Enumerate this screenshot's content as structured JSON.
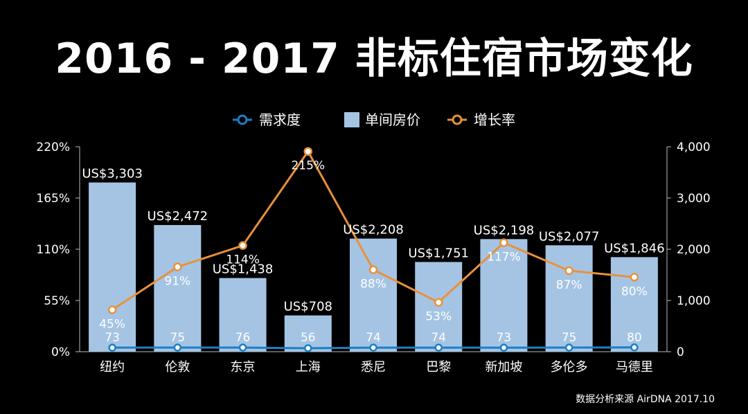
{
  "chart_data": {
    "type": "bar",
    "title": "2016 - 2017 非标住宿市场变化",
    "categories": [
      "纽约",
      "伦敦",
      "东京",
      "上海",
      "悉尼",
      "巴黎",
      "新加坡",
      "多伦多",
      "马德里"
    ],
    "legend": {
      "placement": "top-center",
      "items": [
        {
          "name": "需求度",
          "kind": "line-marker",
          "color": "#1a7fc4"
        },
        {
          "name": "单间房价",
          "kind": "bar",
          "color": "#a5c4e4"
        },
        {
          "name": "增长率",
          "kind": "line-marker",
          "color": "#e8913a"
        }
      ]
    },
    "left_axis": {
      "ylim": [
        0,
        220
      ],
      "ticks": [
        "0%",
        "55%",
        "110%",
        "165%",
        "220%"
      ],
      "tick_values": [
        0,
        55,
        110,
        165,
        220
      ]
    },
    "right_axis": {
      "ylim": [
        0,
        4000
      ],
      "ticks": [
        "0",
        "1,000",
        "2,000",
        "3,000",
        "4,000"
      ],
      "tick_values": [
        0,
        1000,
        2000,
        3000,
        4000
      ]
    },
    "grid": false,
    "series": [
      {
        "name": "单间房价",
        "type": "bar",
        "axis": "right",
        "color": "#a5c4e4",
        "values": [
          3303,
          2472,
          1438,
          708,
          2208,
          1751,
          2198,
          2077,
          1846
        ],
        "labels": [
          "US$3,303",
          "US$2,472",
          "US$1,438",
          "US$708",
          "US$2,208",
          "US$1,751",
          "US$2,198",
          "US$2,077",
          "US$1,846"
        ]
      },
      {
        "name": "增长率",
        "type": "line",
        "axis": "left",
        "color": "#e8913a",
        "values": [
          45,
          91,
          114,
          215,
          88,
          53,
          117,
          87,
          80
        ],
        "labels": [
          "45%",
          "91%",
          "114%",
          "215%",
          "88%",
          "53%",
          "117%",
          "87%",
          "80%"
        ]
      },
      {
        "name": "需求度",
        "type": "line",
        "axis": "left",
        "color": "#1a7fc4",
        "values": [
          73,
          75,
          76,
          56,
          74,
          74,
          73,
          75,
          80
        ],
        "labels": [
          "73",
          "75",
          "76",
          "56",
          "74",
          "74",
          "73",
          "75",
          "80"
        ]
      }
    ]
  },
  "source": "数据分析来源 AirDNA 2017.10"
}
